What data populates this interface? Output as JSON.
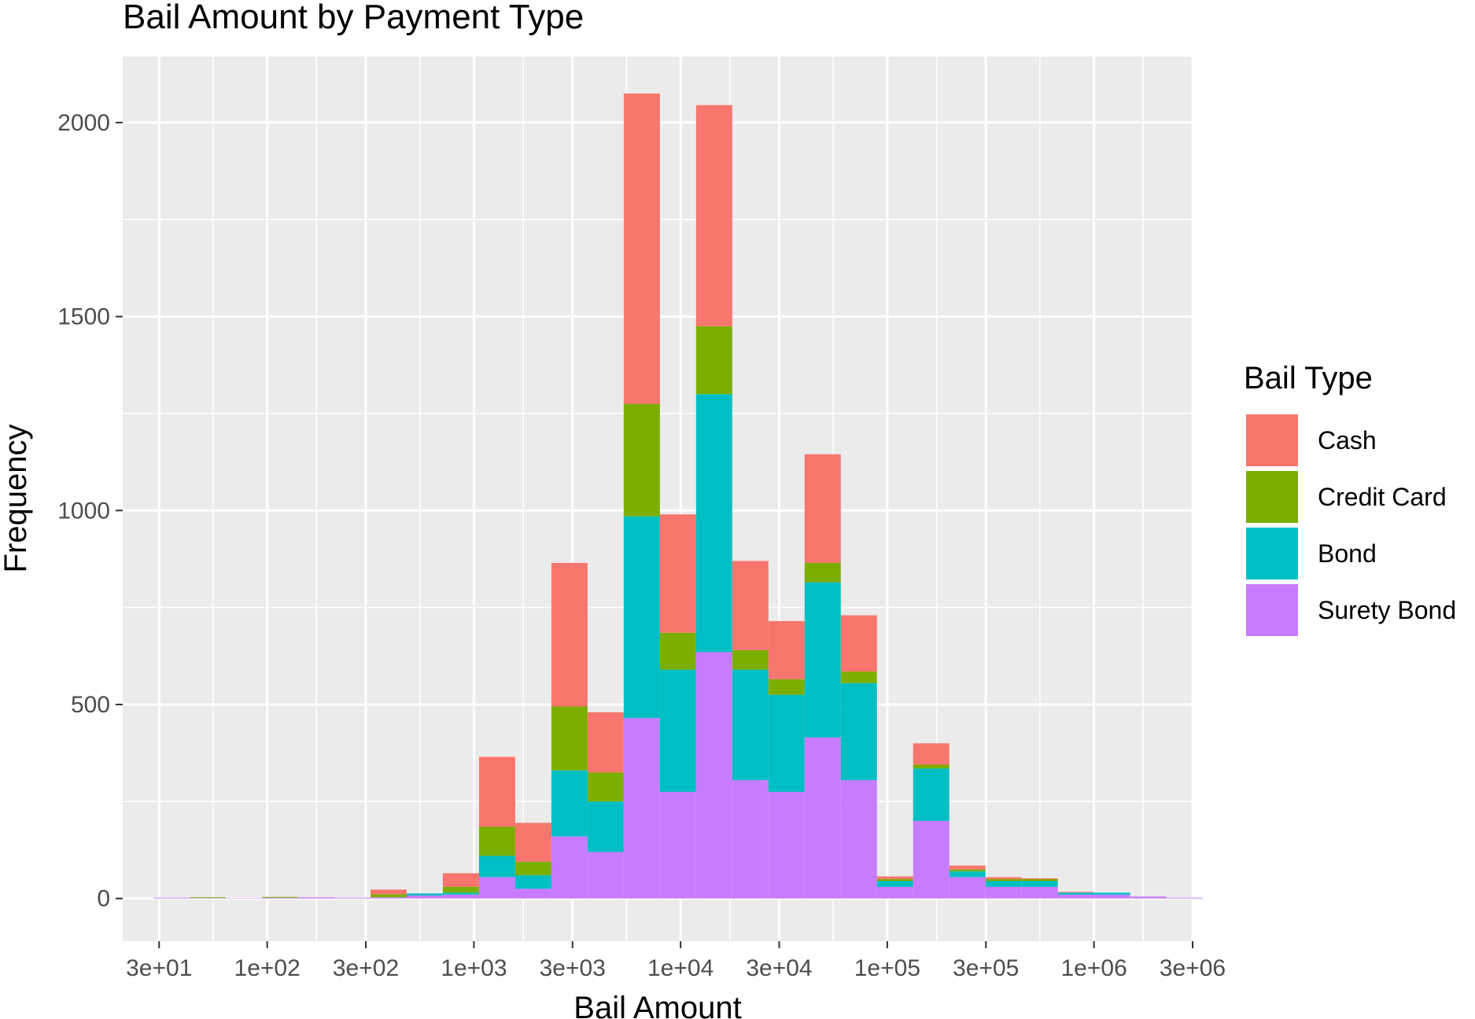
{
  "chart_data": {
    "type": "bar",
    "stacked": true,
    "title": "Bail Amount by Payment Type",
    "xlabel": "Bail Amount",
    "ylabel": "Frequency",
    "x_scale": "log10",
    "xlim": [
      20,
      3000000
    ],
    "ylim": [
      -110,
      2170
    ],
    "x_ticks": [
      30,
      100,
      300,
      1000,
      3000,
      10000,
      30000,
      100000,
      300000,
      1000000,
      3000000
    ],
    "x_tick_labels": [
      "3e+01",
      "1e+02",
      "3e+02",
      "1e+03",
      "3e+03",
      "1e+04",
      "3e+04",
      "1e+05",
      "3e+05",
      "1e+06",
      "3e+06"
    ],
    "y_ticks": [
      0,
      500,
      1000,
      1500,
      2000
    ],
    "y_tick_labels": [
      "0",
      "500",
      "1000",
      "1500",
      "2000"
    ],
    "grid": true,
    "legend": {
      "title": "Bail Type",
      "position": "right"
    },
    "bin_edges": [
      28.2,
      42.2,
      63.1,
      94.4,
      141.3,
      211.3,
      316.2,
      473.2,
      707.9,
      1059.3,
      1584.9,
      2371.4,
      3548.1,
      5308.8,
      7943.3,
      11885,
      17783,
      26607,
      39811,
      59566,
      89125,
      133352,
      199526,
      298538,
      446684,
      668344,
      1000000,
      1496236,
      2238721
    ],
    "series": [
      {
        "name": "Surety Bond",
        "color": "#C77CFF",
        "values": [
          2,
          1,
          1,
          2,
          3,
          2,
          3,
          8,
          10,
          55,
          25,
          160,
          120,
          465,
          275,
          635,
          305,
          275,
          415,
          305,
          30,
          200,
          55,
          30,
          30,
          10,
          10,
          5,
          2
        ]
      },
      {
        "name": "Bond",
        "color": "#00BFC4",
        "values": [
          0,
          0,
          0,
          0,
          0,
          0,
          0,
          5,
          5,
          55,
          35,
          170,
          130,
          520,
          315,
          665,
          285,
          250,
          400,
          250,
          15,
          135,
          15,
          15,
          15,
          5,
          5,
          0,
          0
        ]
      },
      {
        "name": "Credit Card",
        "color": "#7CAE00",
        "values": [
          0,
          2,
          0,
          2,
          0,
          0,
          8,
          0,
          15,
          75,
          35,
          165,
          75,
          290,
          95,
          175,
          50,
          40,
          50,
          30,
          5,
          10,
          5,
          5,
          5,
          0,
          0,
          0,
          0
        ]
      },
      {
        "name": "Cash",
        "color": "#F8766D",
        "values": [
          0,
          0,
          0,
          0,
          0,
          0,
          12,
          0,
          35,
          180,
          100,
          370,
          155,
          800,
          305,
          570,
          230,
          150,
          280,
          145,
          7,
          55,
          10,
          5,
          2,
          2,
          0,
          0,
          0
        ]
      }
    ]
  }
}
